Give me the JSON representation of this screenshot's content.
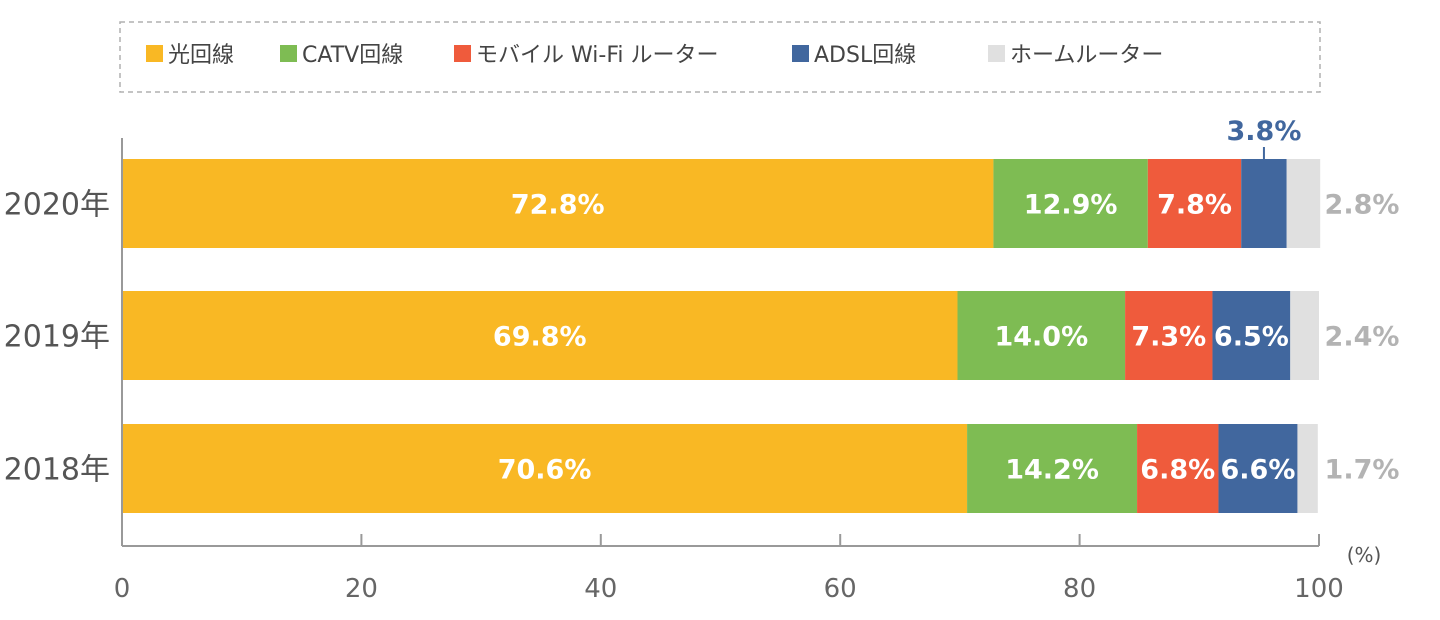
{
  "chart_data": {
    "type": "bar",
    "orientation": "horizontal",
    "stacked": true,
    "categories": [
      "2020年",
      "2019年",
      "2018年"
    ],
    "series": [
      {
        "name": "光回線",
        "color": "#f9b824",
        "values": [
          72.8,
          69.8,
          70.6
        ],
        "labels": [
          "72.8%",
          "69.8%",
          "70.6%"
        ],
        "label_color": "#ffffff"
      },
      {
        "name": "CATV回線",
        "color": "#7ebc53",
        "values": [
          12.9,
          14.0,
          14.2
        ],
        "labels": [
          "12.9%",
          "14.0%",
          "14.2%"
        ],
        "label_color": "#ffffff"
      },
      {
        "name": "モバイル Wi-Fi ルーター",
        "color": "#ef5b3c",
        "values": [
          7.8,
          7.3,
          6.8
        ],
        "labels": [
          "7.8%",
          "7.3%",
          "6.8%"
        ],
        "label_color": "#ffffff"
      },
      {
        "name": "ADSL回線",
        "color": "#41679e",
        "values": [
          3.8,
          6.5,
          6.6
        ],
        "labels": [
          "3.8%",
          "6.5%",
          "6.6%"
        ],
        "label_color": "#ffffff",
        "first_label_color": "#41679e"
      },
      {
        "name": "ホームルーター",
        "color": "#e0e0e0",
        "values": [
          2.8,
          2.4,
          1.7
        ],
        "labels": [
          "2.8%",
          "2.4%",
          "1.7%"
        ],
        "label_color": "#b3b3b3"
      }
    ],
    "xlim": [
      0,
      100
    ],
    "xticks": [
      0,
      20,
      40,
      60,
      80,
      100
    ],
    "xtick_labels": [
      "0",
      "20",
      "40",
      "60",
      "80",
      "100"
    ],
    "unit": "(%)",
    "xlabel": "",
    "ylabel": "",
    "title": "",
    "legend": {
      "placement": "top",
      "border": "dashed"
    },
    "grid": false
  }
}
